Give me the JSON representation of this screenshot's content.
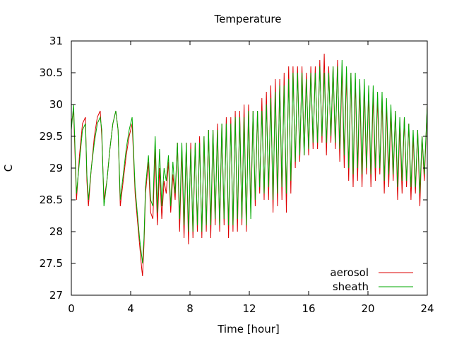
{
  "chart_data": {
    "type": "line",
    "title": "Temperature",
    "xlabel": "Time [hour]",
    "ylabel": "C",
    "xlim": [
      0,
      24
    ],
    "ylim": [
      27,
      31
    ],
    "xticks": [
      0,
      4,
      8,
      12,
      16,
      20,
      24
    ],
    "xtick_labels": [
      "0",
      "4",
      "8",
      "12",
      "16",
      "20",
      "24"
    ],
    "yticks": [
      27,
      27.5,
      28,
      28.5,
      29,
      29.5,
      30,
      30.5,
      31
    ],
    "ytick_labels": [
      "27",
      "27.5",
      "28",
      "28.5",
      "29",
      "29.5",
      "30",
      "30.5",
      "31"
    ],
    "grid": false,
    "legend": "bottom-right",
    "series": [
      {
        "name": "aerosol",
        "color": "#dd0000",
        "x": [
          0.0,
          0.15,
          0.35,
          0.55,
          0.75,
          0.95,
          1.05,
          1.15,
          1.35,
          1.55,
          1.75,
          1.95,
          2.05,
          2.2,
          2.4,
          2.6,
          2.8,
          3.0,
          3.15,
          3.3,
          3.5,
          3.7,
          3.9,
          4.1,
          4.3,
          4.45,
          4.6,
          4.75,
          4.8,
          4.9,
          5.0,
          5.2,
          5.35,
          5.5,
          5.65,
          5.8,
          5.95,
          6.1,
          6.25,
          6.4,
          6.55,
          6.7,
          6.85,
          7.0,
          7.15,
          7.3,
          7.45,
          7.6,
          7.75,
          7.9,
          8.05,
          8.2,
          8.35,
          8.5,
          8.65,
          8.8,
          8.95,
          9.1,
          9.25,
          9.4,
          9.55,
          9.7,
          9.85,
          10.0,
          10.15,
          10.3,
          10.45,
          10.6,
          10.75,
          10.9,
          11.05,
          11.2,
          11.35,
          11.5,
          11.65,
          11.8,
          11.95,
          12.1,
          12.25,
          12.4,
          12.55,
          12.7,
          12.85,
          13.0,
          13.15,
          13.3,
          13.45,
          13.6,
          13.75,
          13.9,
          14.05,
          14.2,
          14.35,
          14.5,
          14.65,
          14.8,
          14.95,
          15.1,
          15.25,
          15.4,
          15.55,
          15.7,
          15.85,
          16.0,
          16.15,
          16.3,
          16.45,
          16.6,
          16.75,
          16.9,
          17.05,
          17.2,
          17.35,
          17.5,
          17.65,
          17.8,
          17.95,
          18.1,
          18.25,
          18.4,
          18.55,
          18.7,
          18.85,
          19.0,
          19.15,
          19.3,
          19.45,
          19.6,
          19.75,
          19.9,
          20.05,
          20.2,
          20.35,
          20.5,
          20.65,
          20.8,
          20.95,
          21.1,
          21.25,
          21.4,
          21.55,
          21.7,
          21.85,
          22.0,
          22.15,
          22.3,
          22.45,
          22.6,
          22.75,
          22.9,
          23.05,
          23.2,
          23.35,
          23.5,
          23.65,
          23.8,
          24.0
        ],
        "y": [
          29.7,
          29.9,
          28.5,
          29.2,
          29.7,
          29.8,
          28.8,
          28.4,
          29.0,
          29.5,
          29.8,
          29.9,
          29.5,
          28.5,
          28.8,
          29.3,
          29.7,
          29.9,
          29.6,
          28.4,
          28.8,
          29.2,
          29.5,
          29.7,
          28.6,
          28.2,
          27.8,
          27.4,
          27.3,
          27.8,
          28.6,
          29.1,
          28.3,
          28.2,
          29.3,
          28.1,
          29.0,
          28.2,
          28.8,
          28.6,
          29.1,
          28.3,
          28.9,
          28.5,
          29.4,
          28.0,
          29.3,
          27.9,
          29.4,
          27.8,
          29.4,
          27.9,
          29.4,
          28.0,
          29.5,
          27.9,
          29.5,
          28.0,
          29.6,
          27.9,
          29.6,
          28.1,
          29.7,
          28.0,
          29.7,
          28.1,
          29.8,
          27.9,
          29.8,
          28.0,
          29.9,
          28.0,
          29.9,
          28.1,
          30.0,
          28.0,
          30.0,
          28.3,
          29.9,
          28.4,
          29.9,
          28.6,
          30.1,
          28.5,
          30.2,
          28.5,
          30.3,
          28.3,
          30.4,
          28.4,
          30.4,
          28.5,
          30.5,
          28.3,
          30.6,
          28.6,
          30.6,
          29.0,
          30.6,
          29.1,
          30.6,
          29.2,
          30.5,
          29.2,
          30.6,
          29.3,
          30.6,
          29.3,
          30.7,
          29.4,
          30.8,
          29.2,
          30.6,
          29.4,
          30.6,
          29.3,
          30.7,
          29.1,
          30.6,
          29.0,
          30.5,
          28.8,
          30.5,
          28.7,
          30.4,
          28.8,
          30.3,
          28.7,
          30.3,
          28.9,
          30.2,
          28.7,
          30.2,
          28.8,
          30.1,
          28.9,
          30.1,
          28.6,
          30.0,
          28.7,
          29.9,
          28.8,
          29.9,
          28.5,
          29.7,
          28.6,
          29.8,
          28.7,
          29.7,
          28.5,
          29.5,
          28.6,
          29.6,
          28.4,
          29.5,
          28.8,
          30.0
        ]
      },
      {
        "name": "sheath",
        "color": "#00aa00",
        "x": [
          0.0,
          0.15,
          0.35,
          0.55,
          0.75,
          0.95,
          1.05,
          1.15,
          1.35,
          1.55,
          1.75,
          1.95,
          2.05,
          2.2,
          2.4,
          2.6,
          2.8,
          3.0,
          3.15,
          3.3,
          3.5,
          3.7,
          3.9,
          4.1,
          4.3,
          4.45,
          4.6,
          4.75,
          4.8,
          4.9,
          5.0,
          5.2,
          5.35,
          5.5,
          5.65,
          5.8,
          5.95,
          6.1,
          6.25,
          6.4,
          6.55,
          6.7,
          6.85,
          7.0,
          7.15,
          7.3,
          7.45,
          7.6,
          7.75,
          7.9,
          8.05,
          8.2,
          8.35,
          8.5,
          8.65,
          8.8,
          8.95,
          9.1,
          9.25,
          9.4,
          9.55,
          9.7,
          9.85,
          10.0,
          10.15,
          10.3,
          10.45,
          10.6,
          10.75,
          10.9,
          11.05,
          11.2,
          11.35,
          11.5,
          11.65,
          11.8,
          11.95,
          12.1,
          12.25,
          12.4,
          12.55,
          12.7,
          12.85,
          13.0,
          13.15,
          13.3,
          13.45,
          13.6,
          13.75,
          13.9,
          14.05,
          14.2,
          14.35,
          14.5,
          14.65,
          14.8,
          14.95,
          15.1,
          15.25,
          15.4,
          15.55,
          15.7,
          15.85,
          16.0,
          16.15,
          16.3,
          16.45,
          16.6,
          16.75,
          16.9,
          17.05,
          17.2,
          17.35,
          17.5,
          17.65,
          17.8,
          17.95,
          18.1,
          18.25,
          18.4,
          18.55,
          18.7,
          18.85,
          19.0,
          19.15,
          19.3,
          19.45,
          19.6,
          19.75,
          19.9,
          20.05,
          20.2,
          20.35,
          20.5,
          20.65,
          20.8,
          20.95,
          21.1,
          21.25,
          21.4,
          21.55,
          21.7,
          21.85,
          22.0,
          22.15,
          22.3,
          22.45,
          22.6,
          22.75,
          22.9,
          23.05,
          23.2,
          23.35,
          23.5,
          23.65,
          23.8,
          24.0
        ],
        "y": [
          29.6,
          30.0,
          28.6,
          29.1,
          29.6,
          29.7,
          28.9,
          28.5,
          29.0,
          29.4,
          29.7,
          29.8,
          29.6,
          28.4,
          28.8,
          29.3,
          29.7,
          29.9,
          29.6,
          28.5,
          28.9,
          29.3,
          29.6,
          29.8,
          28.7,
          28.3,
          27.9,
          27.6,
          27.5,
          27.9,
          28.7,
          29.2,
          28.5,
          28.4,
          29.5,
          28.3,
          29.3,
          28.4,
          29.0,
          28.8,
          29.2,
          28.4,
          29.1,
          28.6,
          29.4,
          28.2,
          29.4,
          28.1,
          29.4,
          28.0,
          29.3,
          28.0,
          29.4,
          28.1,
          29.4,
          28.0,
          29.5,
          28.1,
          29.6,
          28.1,
          29.6,
          28.2,
          29.6,
          28.1,
          29.7,
          28.2,
          29.7,
          28.1,
          29.7,
          28.1,
          29.8,
          28.2,
          29.8,
          28.2,
          29.8,
          28.1,
          29.9,
          28.2,
          29.9,
          28.5,
          29.9,
          28.7,
          29.9,
          28.6,
          30.0,
          28.7,
          30.1,
          28.5,
          30.2,
          28.6,
          30.3,
          28.7,
          30.3,
          28.6,
          30.4,
          28.8,
          30.5,
          29.1,
          30.5,
          29.2,
          30.5,
          29.2,
          30.4,
          29.3,
          30.5,
          29.4,
          30.5,
          29.4,
          30.6,
          29.5,
          30.5,
          29.4,
          30.5,
          29.5,
          30.6,
          29.4,
          30.6,
          29.3,
          30.7,
          29.2,
          30.6,
          29.0,
          30.5,
          28.9,
          30.5,
          29.0,
          30.4,
          28.9,
          30.4,
          29.0,
          30.3,
          28.9,
          30.3,
          29.0,
          30.2,
          29.0,
          30.2,
          28.8,
          30.1,
          28.9,
          30.0,
          28.9,
          29.9,
          28.7,
          29.8,
          28.8,
          29.8,
          28.8,
          29.7,
          28.7,
          29.6,
          28.7,
          29.6,
          28.6,
          29.5,
          28.9,
          30.0
        ]
      }
    ]
  }
}
